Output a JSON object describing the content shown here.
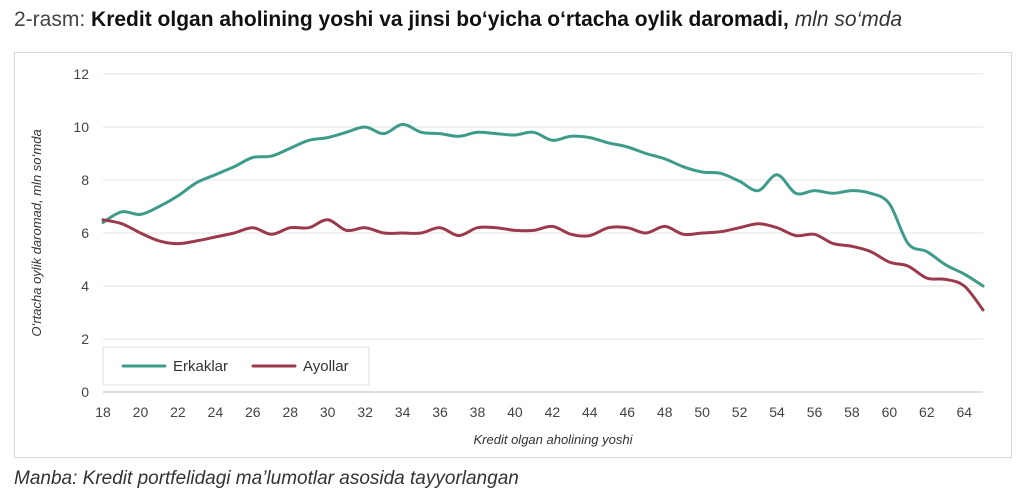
{
  "header": {
    "prefix": "2-rasm:",
    "title": "Kredit olgan aholining yoshi va jinsi bo‘yicha o‘rtacha oylik daromadi,",
    "unit": "mln so‘mda"
  },
  "source": "Manba: Kredit portfelidagi ma’lumotlar asosida tayyorlangan",
  "chart_data": {
    "type": "line",
    "title": "Kredit olgan aholining yoshi va jinsi bo‘yicha o‘rtacha oylik daromadi, mln so‘mda",
    "xlabel": "Kredit olgan aholining yoshi",
    "ylabel": "O‘rtacha oylik daromad, mln so‘mda",
    "xlim": [
      18,
      65
    ],
    "ylim": [
      0,
      12
    ],
    "x_ticks": [
      18,
      20,
      22,
      24,
      26,
      28,
      30,
      32,
      34,
      36,
      38,
      40,
      42,
      44,
      46,
      48,
      50,
      52,
      54,
      56,
      58,
      60,
      62,
      64
    ],
    "y_ticks": [
      0,
      2,
      4,
      6,
      8,
      10,
      12
    ],
    "grid": "horizontal",
    "legend_position": "bottom-left",
    "x": [
      18,
      19,
      20,
      21,
      22,
      23,
      24,
      25,
      26,
      27,
      28,
      29,
      30,
      31,
      32,
      33,
      34,
      35,
      36,
      37,
      38,
      39,
      40,
      41,
      42,
      43,
      44,
      45,
      46,
      47,
      48,
      49,
      50,
      51,
      52,
      53,
      54,
      55,
      56,
      57,
      58,
      59,
      60,
      61,
      62,
      63,
      64,
      65
    ],
    "series": [
      {
        "name": "Erkaklar",
        "color": "#3e9b8c",
        "values": [
          6.4,
          6.8,
          6.7,
          7.0,
          7.4,
          7.9,
          8.2,
          8.5,
          8.85,
          8.9,
          9.2,
          9.5,
          9.6,
          9.8,
          10.0,
          9.75,
          10.1,
          9.8,
          9.75,
          9.65,
          9.8,
          9.75,
          9.7,
          9.8,
          9.5,
          9.65,
          9.6,
          9.4,
          9.25,
          9.0,
          8.8,
          8.5,
          8.3,
          8.25,
          7.95,
          7.6,
          8.2,
          7.5,
          7.6,
          7.5,
          7.6,
          7.5,
          7.1,
          5.6,
          5.3,
          4.8,
          4.45,
          4.0
        ]
      },
      {
        "name": "Ayollar",
        "color": "#9b3a4b",
        "values": [
          6.5,
          6.35,
          6.0,
          5.7,
          5.6,
          5.7,
          5.85,
          6.0,
          6.2,
          5.95,
          6.2,
          6.2,
          6.5,
          6.1,
          6.2,
          6.0,
          6.0,
          6.0,
          6.2,
          5.9,
          6.2,
          6.2,
          6.1,
          6.1,
          6.25,
          5.95,
          5.9,
          6.2,
          6.2,
          6.0,
          6.25,
          5.95,
          6.0,
          6.05,
          6.2,
          6.35,
          6.2,
          5.9,
          5.95,
          5.6,
          5.5,
          5.3,
          4.9,
          4.75,
          4.3,
          4.25,
          4.0,
          3.1
        ]
      }
    ]
  }
}
